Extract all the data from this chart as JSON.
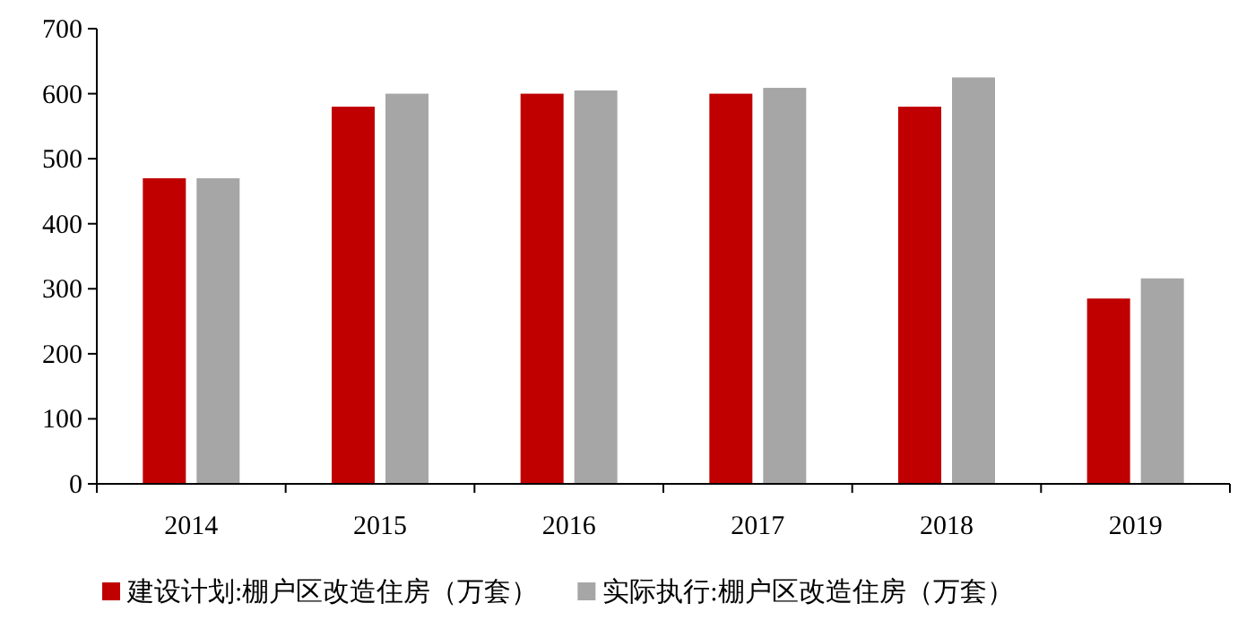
{
  "chart_data": {
    "type": "bar",
    "categories": [
      "2014",
      "2015",
      "2016",
      "2017",
      "2018",
      "2019"
    ],
    "series": [
      {
        "name": "建设计划:棚户区改造住房（万套）",
        "color": "#c00000",
        "values": [
          470,
          580,
          600,
          600,
          580,
          285
        ]
      },
      {
        "name": "实际执行:棚户区改造住房（万套）",
        "color": "#a6a6a6",
        "values": [
          470,
          600,
          605,
          609,
          625,
          316
        ]
      }
    ],
    "ylim": [
      0,
      700
    ],
    "yticks": [
      0,
      100,
      200,
      300,
      400,
      500,
      600,
      700
    ],
    "grid": false,
    "legend": "bottom"
  }
}
